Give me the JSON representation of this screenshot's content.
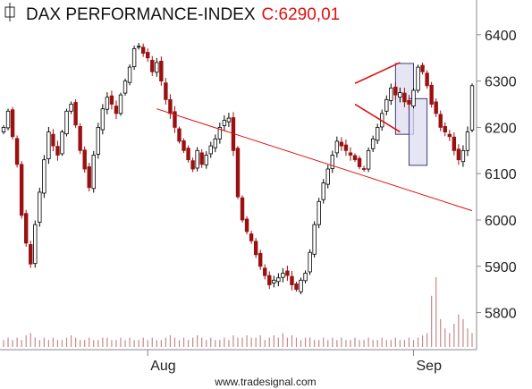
{
  "chart_data": {
    "type": "candlestick",
    "title": "DAX PERFORMANCE-INDEX",
    "close_label": "C:6290,01",
    "y_ticks": [
      "6400",
      "6300",
      "6200",
      "6100",
      "6000",
      "5900",
      "5800"
    ],
    "y_tick_values": [
      6400,
      6300,
      6200,
      6100,
      6000,
      5900,
      5800
    ],
    "ylim": [
      5720,
      6475
    ],
    "x_ticks": [
      {
        "label": "Aug",
        "index": 32
      },
      {
        "label": "Sep",
        "index": 91
      }
    ],
    "closes": [
      6200,
      6235,
      6180,
      6120,
      6010,
      5950,
      5905,
      5990,
      6060,
      6130,
      6190,
      6160,
      6140,
      6190,
      6235,
      6250,
      6205,
      6150,
      6110,
      6070,
      6140,
      6200,
      6240,
      6265,
      6250,
      6230,
      6270,
      6300,
      6330,
      6370,
      6375,
      6360,
      6350,
      6320,
      6340,
      6300,
      6260,
      6230,
      6200,
      6170,
      6150,
      6130,
      6110,
      6150,
      6120,
      6140,
      6160,
      6175,
      6200,
      6215,
      6220,
      6150,
      6050,
      6000,
      5975,
      5955,
      5925,
      5900,
      5880,
      5860,
      5870,
      5875,
      5885,
      5880,
      5860,
      5850,
      5870,
      5885,
      5930,
      5990,
      6040,
      6080,
      6110,
      6140,
      6170,
      6160,
      6150,
      6140,
      6130,
      6115,
      6110,
      6150,
      6175,
      6200,
      6230,
      6260,
      6285,
      6270,
      6275,
      6255,
      6250,
      6280,
      6330,
      6320,
      6290,
      6250,
      6230,
      6200,
      6190,
      6180,
      6150,
      6130,
      6150,
      6190,
      6290
    ],
    "volume": [
      3,
      4,
      3,
      4,
      3,
      5,
      6,
      4,
      3,
      4,
      3,
      4,
      3,
      3,
      4,
      5,
      4,
      3,
      3,
      4,
      3,
      3,
      4,
      4,
      3,
      3,
      4,
      3,
      4,
      3,
      3,
      4,
      3,
      4,
      3,
      3,
      4,
      5,
      4,
      3,
      4,
      3,
      4,
      5,
      4,
      3,
      4,
      3,
      3,
      4,
      3,
      5,
      4,
      4,
      5,
      4,
      4,
      5,
      3,
      4,
      5,
      4,
      6,
      4,
      5,
      4,
      3,
      4,
      4,
      3,
      3,
      4,
      3,
      4,
      3,
      4,
      3,
      3,
      4,
      3,
      3,
      4,
      3,
      3,
      4,
      3,
      3,
      4,
      3,
      3,
      4,
      3,
      4,
      5,
      6,
      22,
      30,
      12,
      8,
      6,
      10,
      14,
      12,
      8,
      6
    ],
    "trendlines": [
      {
        "from": [
          34,
          6240
        ],
        "to": [
          104,
          6020
        ]
      },
      {
        "from": [
          78,
          6295
        ],
        "to": [
          88,
          6340
        ]
      },
      {
        "from": [
          78,
          6250
        ],
        "to": [
          88,
          6190
        ]
      }
    ],
    "boxes": [
      {
        "x": [
          87,
          91
        ],
        "y": [
          6185,
          6338
        ]
      },
      {
        "x": [
          90,
          94
        ],
        "y": [
          6118,
          6262
        ]
      }
    ],
    "colors": {
      "up": "#000000",
      "down": "#9b1010",
      "trendline": "#e01010",
      "box_fill": "#dcdcf0",
      "box_edge": "#3c3c7a"
    },
    "grid": false,
    "watermark": "www.tradesignal.com"
  }
}
